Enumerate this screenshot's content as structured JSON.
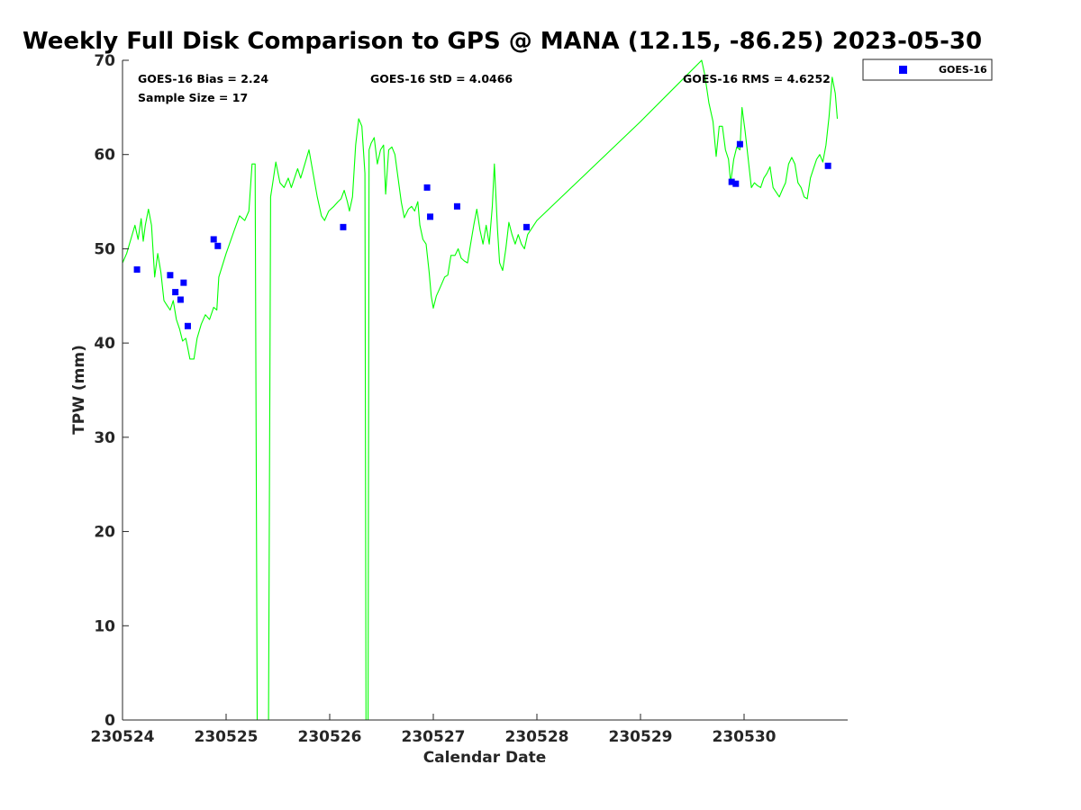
{
  "chart_data": {
    "type": "scatter",
    "title": "Weekly Full Disk Comparison to GPS @ MANA (12.15, -86.25) 2023-05-30",
    "xlabel": "Calendar Date",
    "ylabel": "TPW (mm)",
    "xlim": [
      0,
      7
    ],
    "ylim": [
      0,
      70
    ],
    "x_ticks": [
      0,
      1,
      2,
      3,
      4,
      5,
      6
    ],
    "x_tick_labels": [
      "230524",
      "230525",
      "230526",
      "230527",
      "230528",
      "230529",
      "230530"
    ],
    "y_ticks": [
      0,
      10,
      20,
      30,
      40,
      50,
      60,
      70
    ],
    "grid": false,
    "legend": {
      "position": "outside-top-right",
      "entries": [
        "GOES-16"
      ]
    },
    "stats": {
      "bias_text": "GOES-16 Bias = 2.24",
      "sample_text": "Sample Size = 17",
      "std_text": "GOES-16 StD = 4.0466",
      "rms_text": "GOES-16 RMS = 4.6252"
    },
    "series": [
      {
        "name": "GPS",
        "kind": "line",
        "color": "#00ff00",
        "points": [
          [
            0.0,
            48.5
          ],
          [
            0.04,
            49.5
          ],
          [
            0.08,
            51.0
          ],
          [
            0.12,
            52.5
          ],
          [
            0.15,
            51.0
          ],
          [
            0.18,
            53.2
          ],
          [
            0.2,
            50.8
          ],
          [
            0.22,
            52.5
          ],
          [
            0.25,
            54.2
          ],
          [
            0.28,
            52.5
          ],
          [
            0.31,
            47.0
          ],
          [
            0.34,
            49.5
          ],
          [
            0.37,
            47.5
          ],
          [
            0.4,
            44.5
          ],
          [
            0.43,
            44.0
          ],
          [
            0.46,
            43.5
          ],
          [
            0.49,
            44.5
          ],
          [
            0.52,
            42.5
          ],
          [
            0.55,
            41.5
          ],
          [
            0.58,
            40.2
          ],
          [
            0.61,
            40.5
          ],
          [
            0.63,
            39.5
          ],
          [
            0.65,
            38.3
          ],
          [
            0.69,
            38.3
          ],
          [
            0.72,
            40.5
          ],
          [
            0.76,
            42.0
          ],
          [
            0.8,
            43.0
          ],
          [
            0.84,
            42.5
          ],
          [
            0.88,
            43.8
          ],
          [
            0.91,
            43.5
          ],
          [
            0.93,
            47.0
          ],
          [
            1.0,
            49.5
          ],
          [
            1.08,
            52.0
          ],
          [
            1.13,
            53.5
          ],
          [
            1.18,
            53.0
          ],
          [
            1.22,
            54.0
          ],
          [
            1.25,
            59.0
          ],
          [
            1.28,
            59.0
          ],
          [
            1.3,
            0.0
          ],
          [
            1.41,
            0.0
          ],
          [
            1.43,
            55.5
          ],
          [
            1.45,
            57.0
          ],
          [
            1.48,
            59.2
          ],
          [
            1.52,
            57.0
          ],
          [
            1.56,
            56.5
          ],
          [
            1.6,
            57.5
          ],
          [
            1.63,
            56.5
          ],
          [
            1.66,
            57.5
          ],
          [
            1.69,
            58.5
          ],
          [
            1.72,
            57.5
          ],
          [
            1.76,
            59.0
          ],
          [
            1.8,
            60.5
          ],
          [
            1.84,
            58.0
          ],
          [
            1.88,
            55.5
          ],
          [
            1.92,
            53.5
          ],
          [
            1.95,
            53.0
          ],
          [
            1.99,
            54.0
          ],
          [
            2.04,
            54.5
          ],
          [
            2.08,
            55.0
          ],
          [
            2.11,
            55.3
          ],
          [
            2.14,
            56.2
          ],
          [
            2.17,
            55.0
          ],
          [
            2.19,
            54.0
          ],
          [
            2.22,
            55.5
          ],
          [
            2.25,
            61.0
          ],
          [
            2.28,
            63.8
          ],
          [
            2.31,
            63.0
          ],
          [
            2.34,
            58.0
          ],
          [
            2.35,
            0.0
          ],
          [
            2.37,
            0.0
          ],
          [
            2.38,
            60.5
          ],
          [
            2.4,
            61.2
          ],
          [
            2.43,
            61.8
          ],
          [
            2.46,
            59.0
          ],
          [
            2.49,
            60.5
          ],
          [
            2.52,
            61.0
          ],
          [
            2.54,
            55.8
          ],
          [
            2.57,
            60.5
          ],
          [
            2.6,
            60.8
          ],
          [
            2.63,
            60.0
          ],
          [
            2.66,
            57.5
          ],
          [
            2.69,
            55.0
          ],
          [
            2.72,
            53.3
          ],
          [
            2.76,
            54.2
          ],
          [
            2.79,
            54.5
          ],
          [
            2.82,
            54.0
          ],
          [
            2.85,
            55.0
          ],
          [
            2.87,
            52.5
          ],
          [
            2.9,
            51.0
          ],
          [
            2.93,
            50.5
          ],
          [
            2.96,
            47.5
          ],
          [
            2.98,
            45.0
          ],
          [
            3.0,
            43.7
          ],
          [
            3.03,
            45.0
          ],
          [
            3.07,
            46.0
          ],
          [
            3.11,
            47.0
          ],
          [
            3.14,
            47.2
          ],
          [
            3.17,
            49.3
          ],
          [
            3.21,
            49.3
          ],
          [
            3.24,
            50.0
          ],
          [
            3.27,
            49.0
          ],
          [
            3.3,
            48.7
          ],
          [
            3.33,
            48.5
          ],
          [
            3.36,
            50.5
          ],
          [
            3.39,
            52.5
          ],
          [
            3.42,
            54.2
          ],
          [
            3.45,
            52.0
          ],
          [
            3.48,
            50.5
          ],
          [
            3.51,
            52.5
          ],
          [
            3.54,
            50.5
          ],
          [
            3.57,
            54.5
          ],
          [
            3.59,
            59.0
          ],
          [
            3.62,
            52.0
          ],
          [
            3.64,
            48.5
          ],
          [
            3.67,
            47.7
          ],
          [
            3.7,
            50.0
          ],
          [
            3.73,
            52.8
          ],
          [
            3.76,
            51.5
          ],
          [
            3.79,
            50.5
          ],
          [
            3.82,
            51.5
          ],
          [
            3.85,
            50.5
          ],
          [
            3.88,
            50.0
          ],
          [
            3.91,
            51.5
          ],
          [
            4.0,
            53.0
          ],
          [
            5.0,
            63.5
          ],
          [
            5.59,
            70.0
          ],
          [
            5.62,
            68.5
          ],
          [
            5.66,
            65.5
          ],
          [
            5.7,
            63.5
          ],
          [
            5.73,
            59.8
          ],
          [
            5.76,
            63.0
          ],
          [
            5.79,
            63.0
          ],
          [
            5.82,
            60.5
          ],
          [
            5.85,
            59.5
          ],
          [
            5.87,
            57.0
          ],
          [
            5.9,
            59.5
          ],
          [
            5.93,
            60.8
          ],
          [
            5.96,
            60.5
          ],
          [
            5.98,
            65.0
          ],
          [
            6.01,
            62.5
          ],
          [
            6.04,
            59.5
          ],
          [
            6.07,
            56.5
          ],
          [
            6.1,
            57.0
          ],
          [
            6.13,
            56.7
          ],
          [
            6.16,
            56.5
          ],
          [
            6.19,
            57.5
          ],
          [
            6.22,
            58.0
          ],
          [
            6.25,
            58.7
          ],
          [
            6.28,
            56.5
          ],
          [
            6.31,
            56.0
          ],
          [
            6.34,
            55.5
          ],
          [
            6.37,
            56.3
          ],
          [
            6.4,
            57.0
          ],
          [
            6.43,
            59.0
          ],
          [
            6.46,
            59.7
          ],
          [
            6.49,
            59.0
          ],
          [
            6.52,
            57.0
          ],
          [
            6.55,
            56.5
          ],
          [
            6.58,
            55.5
          ],
          [
            6.61,
            55.3
          ],
          [
            6.64,
            57.5
          ],
          [
            6.67,
            58.5
          ],
          [
            6.7,
            59.5
          ],
          [
            6.73,
            60.0
          ],
          [
            6.76,
            59.2
          ],
          [
            6.79,
            61.0
          ],
          [
            6.82,
            64.0
          ],
          [
            6.85,
            68.2
          ],
          [
            6.88,
            66.5
          ],
          [
            6.9,
            63.8
          ]
        ]
      },
      {
        "name": "GOES-16",
        "kind": "marker",
        "color": "#0000ff",
        "points": [
          [
            0.14,
            47.8
          ],
          [
            0.46,
            47.2
          ],
          [
            0.51,
            45.4
          ],
          [
            0.56,
            44.6
          ],
          [
            0.59,
            46.4
          ],
          [
            0.63,
            41.8
          ],
          [
            0.88,
            51.0
          ],
          [
            0.92,
            50.3
          ],
          [
            2.13,
            52.3
          ],
          [
            2.94,
            56.5
          ],
          [
            2.97,
            53.4
          ],
          [
            3.23,
            54.5
          ],
          [
            3.9,
            52.3
          ],
          [
            5.88,
            57.1
          ],
          [
            5.92,
            56.9
          ],
          [
            5.96,
            61.1
          ],
          [
            6.81,
            58.8
          ]
        ]
      }
    ]
  }
}
